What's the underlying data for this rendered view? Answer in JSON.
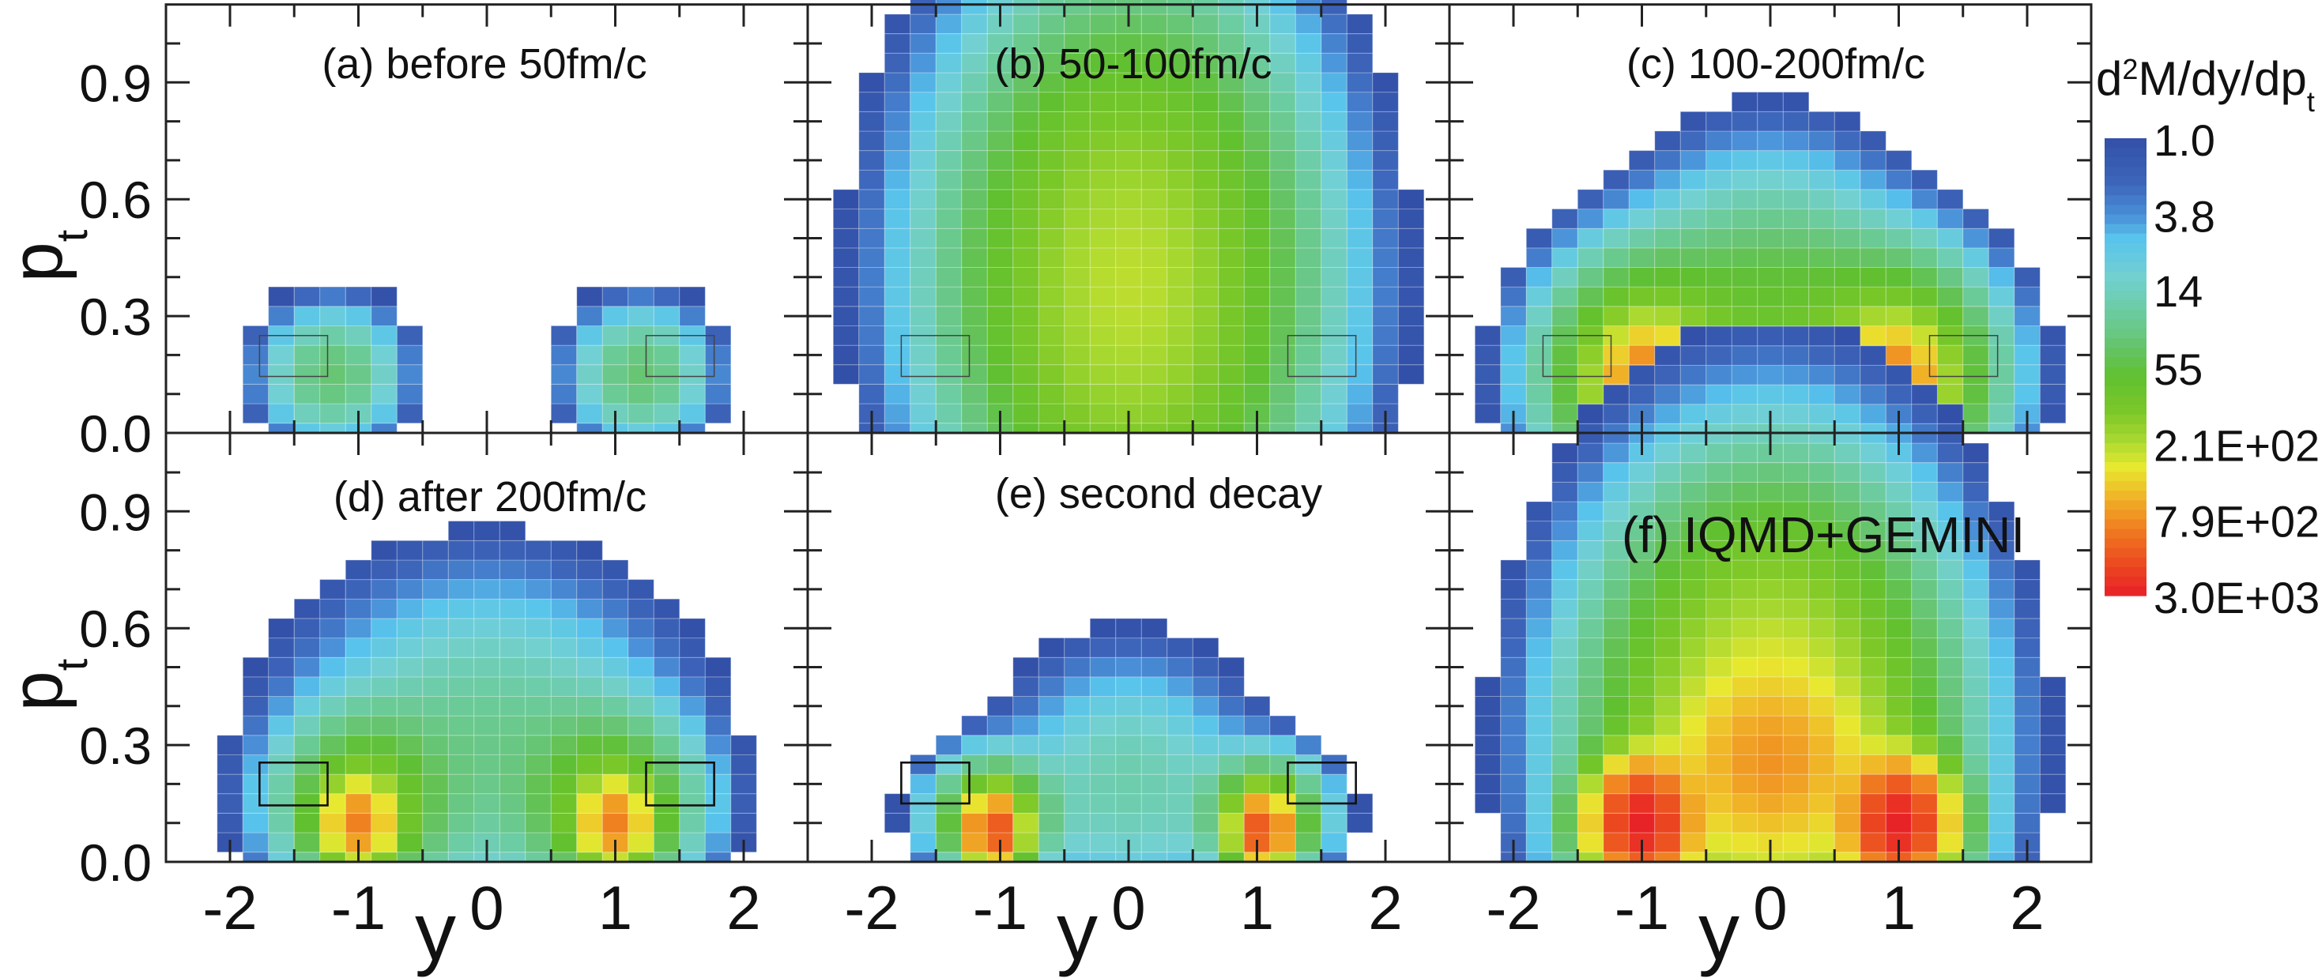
{
  "chart_data": {
    "type": "heatmap",
    "xlabel": "y",
    "ylabel": {
      "main": "p",
      "sub": "t"
    },
    "xlim": [
      -2.5,
      2.5
    ],
    "ylim": [
      0,
      1.1
    ],
    "grid": false,
    "bin_width_y": 0.2,
    "bin_width_pt": 0.05,
    "x_ticks": [
      -2,
      -1,
      0,
      1,
      2
    ],
    "x_tick_labels": [
      "-2",
      "-1",
      "0",
      "1",
      "2"
    ],
    "y_ticks": [
      0,
      0.3,
      0.6,
      0.9
    ],
    "y_tick_labels": [
      "0.0",
      "0.3",
      "0.6",
      "0.9"
    ],
    "colorbar": {
      "title": {
        "d": "d",
        "sup": "2",
        "rest": "M/dy/dp",
        "sub": "t"
      },
      "scale": "log",
      "range": [
        1,
        3000
      ],
      "tick_values": [
        1,
        3.8,
        14,
        55,
        210,
        790,
        3000
      ],
      "tick_labels": [
        "1.0",
        "3.8",
        "14",
        "55",
        "2.1E+02",
        "7.9E+02",
        "3.0E+03"
      ],
      "placement": "right",
      "color_stops": [
        [
          0.0,
          "#3350a8"
        ],
        [
          0.1,
          "#3d66bb"
        ],
        [
          0.17,
          "#4a90d8"
        ],
        [
          0.22,
          "#58c4ec"
        ],
        [
          0.3,
          "#72d0d2"
        ],
        [
          0.38,
          "#6ccca0"
        ],
        [
          0.45,
          "#66c470"
        ],
        [
          0.52,
          "#60c030"
        ],
        [
          0.6,
          "#7cc828"
        ],
        [
          0.66,
          "#a8d830"
        ],
        [
          0.72,
          "#e8e830"
        ],
        [
          0.78,
          "#f0b828"
        ],
        [
          0.85,
          "#f08020"
        ],
        [
          0.93,
          "#ec4a20"
        ],
        [
          1.0,
          "#e82028"
        ]
      ]
    },
    "panels": [
      {
        "id": "a",
        "title": "(a) before 50fm/c",
        "density_components": [
          {
            "y": -1.2,
            "pt": 0.15,
            "amp": 35,
            "sigma_y": 0.28,
            "sigma_pt": 0.09
          },
          {
            "y": 1.2,
            "pt": 0.15,
            "amp": 35,
            "sigma_y": 0.28,
            "sigma_pt": 0.09
          }
        ],
        "boxes": [
          {
            "y": [
              -1.77,
              -1.24
            ],
            "pt": [
              0.145,
              0.25
            ]
          },
          {
            "y": [
              1.24,
              1.77
            ],
            "pt": [
              0.145,
              0.25
            ]
          }
        ],
        "box_style": "thin"
      },
      {
        "id": "b",
        "title": "(b) 50-100fm/c",
        "density_components": [
          {
            "y": 0.0,
            "pt": 0.38,
            "amp": 230,
            "sigma_y": 0.68,
            "sigma_pt": 0.36
          }
        ],
        "boxes": [
          {
            "y": [
              -1.77,
              -1.24
            ],
            "pt": [
              0.145,
              0.25
            ]
          },
          {
            "y": [
              1.24,
              1.77
            ],
            "pt": [
              0.145,
              0.25
            ]
          }
        ],
        "box_style": "thin"
      },
      {
        "id": "c",
        "title": "(c) 100-200fm/c",
        "density_components": [
          {
            "y": 0.0,
            "pt": 0.25,
            "amp": 70,
            "sigma_y": 0.55,
            "sigma_pt": 0.21
          },
          {
            "y": -0.95,
            "pt": 0.15,
            "amp": 200,
            "sigma_y": 0.4,
            "sigma_pt": 0.15
          },
          {
            "y": 0.95,
            "pt": 0.15,
            "amp": 200,
            "sigma_y": 0.4,
            "sigma_pt": 0.15
          },
          {
            "y": -0.95,
            "pt": 0.12,
            "amp": 900,
            "sigma_y": 0.2,
            "sigma_pt": 0.08
          },
          {
            "y": 0.95,
            "pt": 0.12,
            "amp": 900,
            "sigma_y": 0.2,
            "sigma_pt": 0.08
          }
        ],
        "boxes": [
          {
            "y": [
              -1.77,
              -1.24
            ],
            "pt": [
              0.145,
              0.25
            ]
          },
          {
            "y": [
              1.24,
              1.77
            ],
            "pt": [
              0.145,
              0.25
            ]
          }
        ],
        "box_style": "thin"
      },
      {
        "id": "d",
        "title": "(d) after 200fm/c",
        "density_components": [
          {
            "y": 0.0,
            "pt": 0.3,
            "amp": 25,
            "sigma_y": 0.75,
            "sigma_pt": 0.22
          },
          {
            "y": -0.95,
            "pt": 0.15,
            "amp": 100,
            "sigma_y": 0.35,
            "sigma_pt": 0.12
          },
          {
            "y": 0.95,
            "pt": 0.15,
            "amp": 100,
            "sigma_y": 0.35,
            "sigma_pt": 0.12
          },
          {
            "y": -1.0,
            "pt": 0.1,
            "amp": 800,
            "sigma_y": 0.15,
            "sigma_pt": 0.06
          },
          {
            "y": 1.0,
            "pt": 0.1,
            "amp": 800,
            "sigma_y": 0.15,
            "sigma_pt": 0.06
          }
        ],
        "boxes": [
          {
            "y": [
              -1.77,
              -1.24
            ],
            "pt": [
              0.145,
              0.255
            ]
          },
          {
            "y": [
              1.24,
              1.77
            ],
            "pt": [
              0.145,
              0.255
            ]
          }
        ],
        "box_style": "bold"
      },
      {
        "id": "e",
        "title": "(e) second decay",
        "density_components": [
          {
            "y": 0.0,
            "pt": 0.2,
            "amp": 18,
            "sigma_y": 0.5,
            "sigma_pt": 0.17
          },
          {
            "y": -1.05,
            "pt": 0.12,
            "amp": 100,
            "sigma_y": 0.25,
            "sigma_pt": 0.08
          },
          {
            "y": 1.05,
            "pt": 0.12,
            "amp": 100,
            "sigma_y": 0.25,
            "sigma_pt": 0.08
          },
          {
            "y": -1.05,
            "pt": 0.08,
            "amp": 1500,
            "sigma_y": 0.12,
            "sigma_pt": 0.05
          },
          {
            "y": 1.05,
            "pt": 0.08,
            "amp": 1500,
            "sigma_y": 0.12,
            "sigma_pt": 0.05
          }
        ],
        "boxes": [
          {
            "y": [
              -1.77,
              -1.24
            ],
            "pt": [
              0.15,
              0.255
            ]
          },
          {
            "y": [
              1.24,
              1.77
            ],
            "pt": [
              0.15,
              0.255
            ]
          }
        ],
        "box_style": "bold"
      },
      {
        "id": "f",
        "title": "(f) IQMD+GEMINI",
        "density_components": [
          {
            "y": 0.0,
            "pt": 0.3,
            "amp": 350,
            "sigma_y": 0.65,
            "sigma_pt": 0.32
          },
          {
            "y": 0.0,
            "pt": 0.25,
            "amp": 400,
            "sigma_y": 0.4,
            "sigma_pt": 0.12
          },
          {
            "y": -1.0,
            "pt": 0.1,
            "amp": 2800,
            "sigma_y": 0.2,
            "sigma_pt": 0.08
          },
          {
            "y": 1.0,
            "pt": 0.1,
            "amp": 2800,
            "sigma_y": 0.2,
            "sigma_pt": 0.08
          }
        ],
        "boxes": [],
        "box_style": "none"
      }
    ]
  }
}
